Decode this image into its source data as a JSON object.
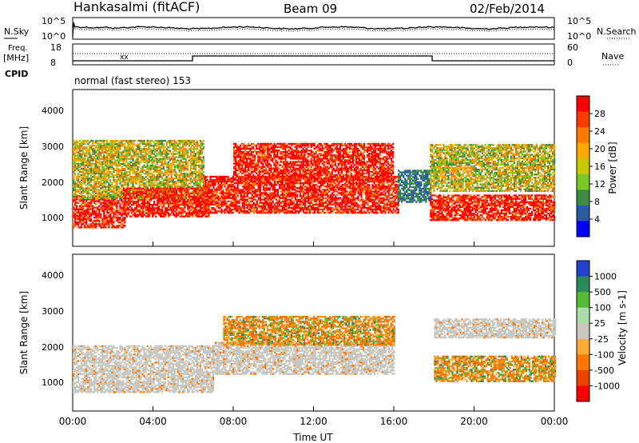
{
  "header": {
    "station": "Hankasalmi (fitACF)",
    "beam": "Beam 09",
    "date": "02/Feb/2014"
  },
  "top_panels": {
    "nsky_label": "N.Sky",
    "nsearch_label": "N.Search",
    "freq_label": "Freq.",
    "freq_unit": "[MHz]",
    "nave_label": "Nave",
    "cpid_label": "CPID",
    "cpid_text": "normal (fast stereo) 153",
    "noise_ticks": [
      "10^5",
      "10^0"
    ],
    "freq_ticks": [
      "18",
      "8"
    ],
    "nave_ticks": [
      "60",
      "0"
    ]
  },
  "axes": {
    "xlabel": "Time UT",
    "ylabel": "Slant Range [km]",
    "x_ticks": [
      "00:00",
      "04:00",
      "08:00",
      "12:00",
      "16:00",
      "20:00",
      "00:00"
    ],
    "y_ticks": [
      "4000",
      "3000",
      "2000",
      "1000"
    ]
  },
  "colorbars": {
    "power": {
      "label": "Power [dB]",
      "ticks": [
        "28",
        "24",
        "20",
        "16",
        "12",
        "8",
        "4"
      ],
      "colors": [
        "#ff0000",
        "#ff3c00",
        "#ff7800",
        "#ffaa00",
        "#c8c800",
        "#78c828",
        "#3c8c46",
        "#2a5aa0",
        "#0000ff"
      ]
    },
    "velocity": {
      "label": "Velocity [m s-1]",
      "ticks": [
        "1000",
        "500",
        "100",
        "25",
        "-25",
        "-100",
        "-500",
        "-1000"
      ],
      "colors": [
        "#2244cc",
        "#2a8a5a",
        "#55bb33",
        "#aaddaa",
        "#c8c8c0",
        "#ffaa33",
        "#ff7700",
        "#ee4400",
        "#ff0000"
      ]
    }
  },
  "chart_data": {
    "type": "heatmap",
    "title": "Hankasalmi (fitACF)",
    "xlabel": "Time UT",
    "ylabel": "Slant Range [km]",
    "xlim": [
      0,
      24
    ],
    "ylim": [
      200,
      4500
    ],
    "power_scatter_bands": [
      {
        "t0": 0.0,
        "t1": 2.6,
        "r0": 700,
        "r1": 1600,
        "level": "strong"
      },
      {
        "t0": 0.0,
        "t1": 6.5,
        "r0": 1500,
        "r1": 3100,
        "level": "medium"
      },
      {
        "t0": 2.5,
        "t1": 6.8,
        "r0": 1000,
        "r1": 1800,
        "level": "strong"
      },
      {
        "t0": 6.5,
        "t1": 16.2,
        "r0": 1100,
        "r1": 2100,
        "level": "strong"
      },
      {
        "t0": 8.0,
        "t1": 16.0,
        "r0": 2000,
        "r1": 3000,
        "level": "strong"
      },
      {
        "t0": 16.2,
        "t1": 17.8,
        "r0": 1400,
        "r1": 2300,
        "level": "weak"
      },
      {
        "t0": 17.8,
        "t1": 24.0,
        "r0": 900,
        "r1": 1600,
        "level": "strong"
      },
      {
        "t0": 17.8,
        "t1": 24.0,
        "r0": 1700,
        "r1": 3000,
        "level": "medium"
      }
    ],
    "velocity_scatter_bands": [
      {
        "t0": 0.0,
        "t1": 7.0,
        "r0": 700,
        "r1": 2000,
        "v": "ground (-25..25)"
      },
      {
        "t0": 7.0,
        "t1": 16.0,
        "r0": 1200,
        "r1": 2100,
        "v": "ground (-25..25)"
      },
      {
        "t0": 7.5,
        "t1": 16.0,
        "r0": 2000,
        "r1": 2800,
        "v": "-100..-500"
      },
      {
        "t0": 18.0,
        "t1": 24.0,
        "r0": 1000,
        "r1": 1700,
        "v": "-100..-500"
      },
      {
        "t0": 18.0,
        "t1": 24.0,
        "r0": 2200,
        "r1": 2700,
        "v": "ground (-25..25)"
      }
    ],
    "frequency_step": {
      "time_of_change_up": 6.0,
      "time_of_change_down": 18.0
    },
    "grid": false
  }
}
